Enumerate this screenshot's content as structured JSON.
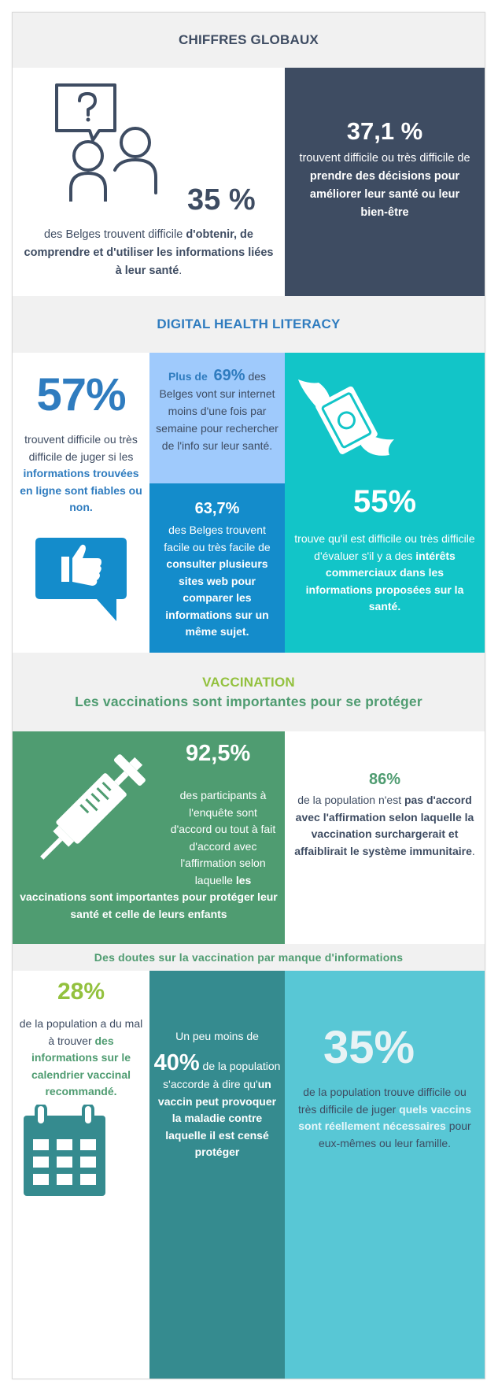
{
  "colors": {
    "navy": "#3e4c62",
    "blue": "#2f7cbf",
    "light_blue": "#9fcafc",
    "mid_blue": "#148ccb",
    "teal": "#12c5c8",
    "green": "#4f9c71",
    "lime": "#93c13e",
    "dark_teal": "#358b8f",
    "light_teal": "#58c7d5",
    "panel_grey": "#f1f1f1"
  },
  "section1": {
    "title": "CHIFFRES GLOBAUX",
    "left": {
      "icon": "question-people-icon",
      "stat": "35 %",
      "text_a": "des Belges trouvent difficile ",
      "text_b": "d'obtenir, de comprendre et d'utiliser les informations liées à leur santé",
      "text_c": "."
    },
    "right": {
      "stat": "37,1 %",
      "text_a": "trouvent difficile ou très difficile de ",
      "text_b": "prendre des décisions pour améliorer leur santé ou leur bien-être"
    }
  },
  "section2": {
    "title": "DIGITAL HEALTH LITERACY",
    "col1": {
      "stat": "57%",
      "text_a": "trouvent difficile ou très difficile de juger si les ",
      "text_b": "informations trouvées en ligne sont fiables ou non.",
      "icon": "thumbs-up-chat-icon"
    },
    "col2_top": {
      "prefix": "Plus de",
      "stat": "69%",
      "text": " des Belges vont sur internet moins d'une fois par semaine pour rechercher de l'info sur leur santé."
    },
    "col2_bottom": {
      "stat": "63,7%",
      "text_a": "des Belges trouvent facile ou très facile de ",
      "text_b": "consulter plusieurs sites web pour comparer les informations sur un même sujet."
    },
    "col3": {
      "icon": "flying-money-icon",
      "stat": "55%",
      "text_a": "trouve qu'il est difficile ou très difficile d'évaluer s'il y a des ",
      "text_b": "intérêts commerciaux dans les informations proposées sur la santé."
    }
  },
  "section3": {
    "title": "VACCINATION",
    "subtitle": "Les vaccinations sont importantes pour se protéger",
    "left": {
      "icon": "syringe-icon",
      "stat": "92,5%",
      "text_a": "des participants à l'enquête sont d'accord ou tout à fait d'accord avec l'affirmation selon laquelle ",
      "text_b": "les",
      "text_c": "vaccinations sont importantes pour protéger leur santé et celle de leurs enfants"
    },
    "right": {
      "stat": "86%",
      "text_a": "de la population n'est ",
      "text_b": "pas d'accord avec l'affirmation selon laquelle la vaccination surchargerait et affaiblirait le système immunitaire",
      "text_c": "."
    }
  },
  "section4": {
    "title": "Des doutes sur la vaccination par manque d'informations",
    "col1": {
      "stat": "28%",
      "text_a": "de la population a du mal à trouver ",
      "text_b": "des informations sur le calendrier vaccinal recommandé.",
      "icon": "calendar-icon"
    },
    "col2": {
      "prefix": "Un peu moins de",
      "stat": "40%",
      "stat_suffix": " de la population s'accorde à dire qu'",
      "text_b": "un vaccin peut provoquer la maladie contre laquelle il est censé protéger"
    },
    "col3": {
      "stat": "35%",
      "text_a": "de la population trouve difficile ou très difficile de juger ",
      "text_b": "quels vaccins sont réellement nécessaires",
      "text_c": " pour eux-mêmes ou leur famille."
    }
  }
}
